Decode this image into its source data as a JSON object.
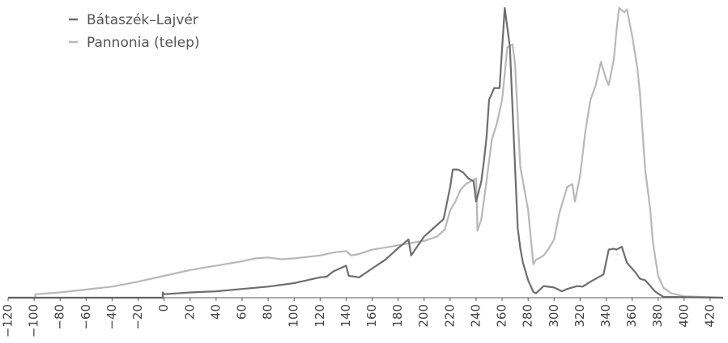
{
  "chart_data": {
    "type": "line",
    "title": "",
    "xlabel": "",
    "ylabel": "",
    "xlim": [
      -120,
      430
    ],
    "ylim": [
      0,
      100
    ],
    "x_ticks": [
      -120,
      -100,
      -80,
      -60,
      -40,
      -20,
      0,
      20,
      40,
      60,
      80,
      100,
      120,
      140,
      160,
      180,
      200,
      220,
      240,
      260,
      280,
      300,
      320,
      340,
      360,
      380,
      400,
      420
    ],
    "x_tick_labels": [
      "−120",
      "−100",
      "−80",
      "−60",
      "−40",
      "−20",
      "0",
      "20",
      "40",
      "60",
      "80",
      "100",
      "120",
      "140",
      "160",
      "180",
      "200",
      "220",
      "240",
      "260",
      "280",
      "300",
      "320",
      "340",
      "360",
      "380",
      "400",
      "420"
    ],
    "grid": false,
    "legend_position": "top-left",
    "series": [
      {
        "name": "Bátaszék–Lajvér",
        "color": "#6e6e6e",
        "points": [
          [
            -120,
            0
          ],
          [
            -1,
            0
          ],
          [
            -1,
            1.8
          ],
          [
            0,
            1.2
          ],
          [
            20,
            1.8
          ],
          [
            40,
            2.2
          ],
          [
            60,
            3.0
          ],
          [
            80,
            3.8
          ],
          [
            100,
            5
          ],
          [
            105,
            5.5
          ],
          [
            110,
            6
          ],
          [
            120,
            7
          ],
          [
            125,
            7.2
          ],
          [
            130,
            9
          ],
          [
            140,
            11
          ],
          [
            142,
            7.5
          ],
          [
            150,
            7
          ],
          [
            160,
            10
          ],
          [
            170,
            13
          ],
          [
            180,
            17
          ],
          [
            188,
            20
          ],
          [
            190,
            14.5
          ],
          [
            200,
            21
          ],
          [
            210,
            25
          ],
          [
            215,
            27
          ],
          [
            220,
            38
          ],
          [
            222,
            44
          ],
          [
            226,
            44
          ],
          [
            230,
            43
          ],
          [
            234,
            41
          ],
          [
            238,
            40
          ],
          [
            240,
            33
          ],
          [
            244,
            40
          ],
          [
            246,
            47
          ],
          [
            248,
            55
          ],
          [
            250,
            68
          ],
          [
            254,
            72
          ],
          [
            258,
            72
          ],
          [
            262,
            99.5
          ],
          [
            266,
            86
          ],
          [
            268,
            65
          ],
          [
            272,
            24
          ],
          [
            274,
            17
          ],
          [
            276,
            12
          ],
          [
            280,
            6
          ],
          [
            284,
            2
          ],
          [
            286,
            1.5
          ],
          [
            292,
            4
          ],
          [
            300,
            3.5
          ],
          [
            306,
            2.2
          ],
          [
            310,
            3
          ],
          [
            318,
            4
          ],
          [
            322,
            3.8
          ],
          [
            328,
            5.5
          ],
          [
            332,
            6.5
          ],
          [
            338,
            8
          ],
          [
            342,
            16.5
          ],
          [
            346,
            16.8
          ],
          [
            348,
            16.5
          ],
          [
            352,
            17.5
          ],
          [
            356,
            12
          ],
          [
            362,
            9
          ],
          [
            366,
            6.5
          ],
          [
            370,
            6
          ],
          [
            378,
            2
          ],
          [
            384,
            0.3
          ],
          [
            430,
            0
          ]
        ]
      },
      {
        "name": "Pannonia (telep)",
        "color": "#b8b8b8",
        "points": [
          [
            -120,
            0
          ],
          [
            -99,
            0
          ],
          [
            -99,
            1.2
          ],
          [
            -80,
            1.8
          ],
          [
            -60,
            2.8
          ],
          [
            -40,
            3.8
          ],
          [
            -20,
            5.5
          ],
          [
            0,
            7.5
          ],
          [
            20,
            9.5
          ],
          [
            40,
            11
          ],
          [
            60,
            12.5
          ],
          [
            70,
            13.5
          ],
          [
            80,
            13.8
          ],
          [
            90,
            13.2
          ],
          [
            100,
            13.5
          ],
          [
            110,
            14
          ],
          [
            120,
            14.5
          ],
          [
            130,
            15.5
          ],
          [
            140,
            16
          ],
          [
            144,
            14.5
          ],
          [
            150,
            15
          ],
          [
            160,
            16.5
          ],
          [
            170,
            17.2
          ],
          [
            180,
            18
          ],
          [
            190,
            18.8
          ],
          [
            200,
            19.5
          ],
          [
            210,
            21
          ],
          [
            216,
            23.5
          ],
          [
            220,
            30
          ],
          [
            224,
            33
          ],
          [
            228,
            37
          ],
          [
            232,
            39
          ],
          [
            236,
            40
          ],
          [
            240,
            41
          ],
          [
            241,
            23
          ],
          [
            244,
            27
          ],
          [
            248,
            40
          ],
          [
            252,
            54
          ],
          [
            256,
            60
          ],
          [
            260,
            68
          ],
          [
            264,
            86
          ],
          [
            268,
            87
          ],
          [
            270,
            80
          ],
          [
            274,
            45
          ],
          [
            276,
            40
          ],
          [
            280,
            30
          ],
          [
            284,
            11.5
          ],
          [
            286,
            13
          ],
          [
            292,
            14.5
          ],
          [
            296,
            17
          ],
          [
            300,
            20
          ],
          [
            304,
            29
          ],
          [
            308,
            35
          ],
          [
            310,
            38
          ],
          [
            314,
            39
          ],
          [
            316,
            33
          ],
          [
            320,
            42
          ],
          [
            324,
            57
          ],
          [
            328,
            68
          ],
          [
            332,
            73
          ],
          [
            336,
            81
          ],
          [
            340,
            75
          ],
          [
            342,
            73
          ],
          [
            346,
            82
          ],
          [
            348,
            92
          ],
          [
            350,
            99.5
          ],
          [
            354,
            98
          ],
          [
            356,
            99
          ],
          [
            360,
            90
          ],
          [
            364,
            79
          ],
          [
            366,
            70
          ],
          [
            370,
            44
          ],
          [
            374,
            30
          ],
          [
            376,
            19
          ],
          [
            380,
            7.5
          ],
          [
            384,
            3.5
          ],
          [
            390,
            1.5
          ],
          [
            400,
            0.5
          ],
          [
            430,
            0
          ]
        ]
      }
    ]
  }
}
